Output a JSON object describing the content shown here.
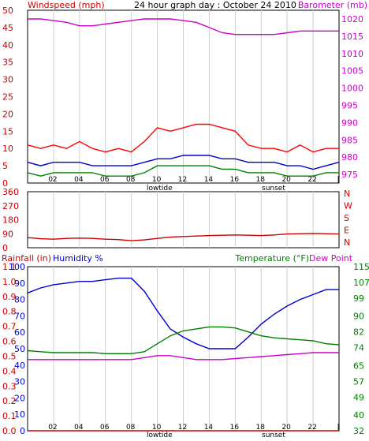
{
  "chart_data": [
    {
      "type": "line",
      "title": "24 hour graph day : October 24 2010",
      "ylabel_left": "Windspeed (mph)",
      "ylabel_right": "Barometer (mb)",
      "x_ticks": [
        "02",
        "04",
        "06",
        "08",
        "10",
        "12",
        "14",
        "16",
        "18",
        "20",
        "22",
        "|"
      ],
      "x_markers": [
        "lowtide",
        "sunset"
      ],
      "xlim": [
        0,
        24
      ],
      "ylim_left": [
        0,
        50
      ],
      "y_ticks_left": [
        0,
        5,
        10,
        15,
        20,
        25,
        30,
        35,
        40,
        45,
        50
      ],
      "ylim_right": [
        972.5,
        1022.5
      ],
      "y_ticks_right": [
        975,
        980,
        985,
        990,
        995,
        1000,
        1005,
        1010,
        1015,
        1020
      ],
      "grid": true,
      "series": [
        {
          "key": "barometer",
          "axis": "right",
          "color": "#cc00cc",
          "x": [
            0,
            1,
            2,
            3,
            4,
            5,
            6,
            7,
            8,
            9,
            10,
            11,
            12,
            13,
            14,
            15,
            16,
            17,
            18,
            19,
            20,
            21,
            22,
            23,
            24
          ],
          "y": [
            1020,
            1020,
            1019.5,
            1019,
            1018,
            1018,
            1018.5,
            1019,
            1019.5,
            1020,
            1020,
            1020,
            1019.5,
            1019,
            1017.5,
            1016,
            1015.5,
            1015.5,
            1015.5,
            1015.5,
            1016,
            1016.5,
            1016.5,
            1016.5,
            1016.5
          ]
        },
        {
          "key": "gust",
          "axis": "left",
          "color": "#ff0000",
          "x": [
            0,
            1,
            2,
            3,
            4,
            5,
            6,
            7,
            8,
            9,
            10,
            11,
            12,
            13,
            14,
            15,
            16,
            17,
            18,
            19,
            20,
            21,
            22,
            23,
            24
          ],
          "y": [
            11,
            10,
            11,
            10,
            12,
            10,
            9,
            10,
            9,
            12,
            16,
            15,
            16,
            17,
            17,
            16,
            15,
            11,
            10,
            10,
            9,
            11,
            9,
            10,
            10
          ]
        },
        {
          "key": "average wind",
          "axis": "left",
          "color": "#0000cc",
          "x": [
            0,
            1,
            2,
            3,
            4,
            5,
            6,
            7,
            8,
            9,
            10,
            11,
            12,
            13,
            14,
            15,
            16,
            17,
            18,
            19,
            20,
            21,
            22,
            23,
            24
          ],
          "y": [
            6,
            5,
            6,
            6,
            6,
            5,
            5,
            5,
            5,
            6,
            7,
            7,
            8,
            8,
            8,
            7,
            7,
            6,
            6,
            6,
            5,
            5,
            4,
            5,
            6
          ]
        },
        {
          "key": "min wind",
          "axis": "left",
          "color": "#008000",
          "x": [
            0,
            1,
            2,
            3,
            4,
            5,
            6,
            7,
            8,
            9,
            10,
            11,
            12,
            13,
            14,
            15,
            16,
            17,
            18,
            19,
            20,
            21,
            22,
            23,
            24
          ],
          "y": [
            3,
            2,
            3,
            3,
            3,
            3,
            2,
            2,
            2,
            3,
            5,
            5,
            5,
            5,
            5,
            4,
            4,
            3,
            3,
            3,
            2,
            2,
            2,
            3,
            3
          ]
        }
      ]
    },
    {
      "type": "line",
      "ylabel_right_letters": [
        "N",
        "W",
        "S",
        "E",
        "N"
      ],
      "xlim": [
        0,
        24
      ],
      "ylim": [
        0,
        360
      ],
      "y_ticks": [
        0,
        90,
        180,
        270,
        360
      ],
      "grid": true,
      "series": [
        {
          "key": "wind direction",
          "color": "#cc0000",
          "x": [
            0,
            1,
            2,
            3,
            4,
            5,
            6,
            7,
            8,
            9,
            10,
            11,
            12,
            13,
            14,
            15,
            16,
            17,
            18,
            19,
            20,
            21,
            22,
            23,
            24
          ],
          "y": [
            65,
            58,
            55,
            60,
            62,
            60,
            55,
            52,
            45,
            50,
            60,
            68,
            72,
            75,
            78,
            80,
            82,
            80,
            78,
            82,
            88,
            90,
            92,
            90,
            88
          ]
        }
      ]
    },
    {
      "type": "line",
      "ylabel_left": "Rainfall (in)",
      "ylabel_left2": "Humidity %",
      "ylabel_right": "Temperature (°F)",
      "ylabel_right2": "Dew Point",
      "x_ticks": [
        "02",
        "04",
        "06",
        "08",
        "10",
        "12",
        "14",
        "16",
        "18",
        "20",
        "22",
        "|"
      ],
      "x_markers": [
        "lowtide",
        "sunset"
      ],
      "xlim": [
        0,
        24
      ],
      "y_ticks_rain": [
        0.0,
        0.1,
        0.2,
        0.3,
        0.4,
        0.5,
        0.6,
        0.7,
        0.8,
        0.9,
        1.0,
        1.1
      ],
      "y_ticks_humidity": [
        0,
        10,
        20,
        30,
        40,
        50,
        60,
        70,
        80,
        90,
        100
      ],
      "ylim_humidity": [
        0,
        100
      ],
      "y_ticks_temp": [
        32,
        40,
        49,
        57,
        65,
        74,
        82,
        90,
        99,
        107,
        115
      ],
      "ylim_temp": [
        32,
        115
      ],
      "grid": true,
      "series": [
        {
          "key": "humidity",
          "axis": "humidity",
          "color": "#0000cc",
          "x": [
            0,
            1,
            2,
            3,
            4,
            5,
            6,
            7,
            8,
            9,
            10,
            11,
            12,
            13,
            14,
            15,
            16,
            17,
            18,
            19,
            20,
            21,
            22,
            23,
            24
          ],
          "y": [
            84,
            87,
            89,
            90,
            91,
            91,
            92,
            93,
            93,
            85,
            73,
            62,
            57,
            53,
            50,
            50,
            50,
            57,
            65,
            71,
            76,
            80,
            83,
            86,
            86
          ]
        },
        {
          "key": "temperature",
          "axis": "temp",
          "color": "#008000",
          "x": [
            0,
            1,
            2,
            3,
            4,
            5,
            6,
            7,
            8,
            9,
            10,
            11,
            12,
            13,
            14,
            15,
            16,
            17,
            18,
            19,
            20,
            21,
            22,
            23,
            24
          ],
          "y": [
            72.5,
            72,
            71.5,
            71.5,
            71.5,
            71.5,
            71,
            71,
            71,
            72,
            76,
            80,
            82.5,
            83.5,
            84.5,
            84.5,
            84,
            82,
            80,
            79,
            78.5,
            78,
            77.5,
            76,
            75.5
          ]
        },
        {
          "key": "dew point",
          "axis": "temp",
          "color": "#cc00cc",
          "x": [
            0,
            1,
            2,
            3,
            4,
            5,
            6,
            7,
            8,
            9,
            10,
            11,
            12,
            13,
            14,
            15,
            16,
            17,
            18,
            19,
            20,
            21,
            22,
            23,
            24
          ],
          "y": [
            68,
            68,
            68,
            68,
            68,
            68,
            68,
            68,
            68,
            69,
            70,
            70,
            69,
            68,
            68,
            68,
            68.5,
            69,
            69.5,
            70,
            70.5,
            71,
            71.5,
            71.5,
            71.5
          ]
        },
        {
          "key": "rainfall",
          "axis": "rain",
          "color": "#cc0000",
          "x": [
            0,
            24
          ],
          "y": [
            0.0,
            0.0
          ]
        }
      ]
    }
  ]
}
